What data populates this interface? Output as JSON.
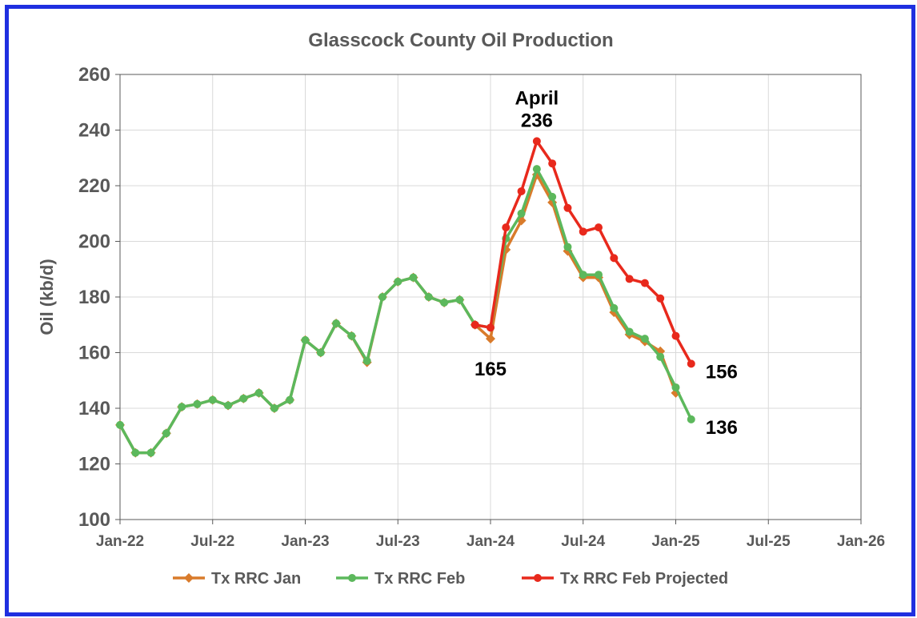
{
  "colors": {
    "border": "#1f2fe0",
    "jan": "#d97b2b",
    "feb": "#5cb85c",
    "proj": "#e8291c",
    "grid": "#d9d9d9",
    "text": "#595959"
  },
  "chart_data": {
    "type": "line",
    "title": "Glasscock County Oil Production",
    "xlabel": "",
    "ylabel": "Oil (kb/d)",
    "ylim": [
      100,
      260
    ],
    "yticks": [
      100,
      120,
      140,
      160,
      180,
      200,
      220,
      240,
      260
    ],
    "xlim": [
      "2022-01",
      "2026-01"
    ],
    "xticks": [
      {
        "date": "2022-01",
        "label": "Jan-22"
      },
      {
        "date": "2022-07",
        "label": "Jul-22"
      },
      {
        "date": "2023-01",
        "label": "Jan-23"
      },
      {
        "date": "2023-07",
        "label": "Jul-23"
      },
      {
        "date": "2024-01",
        "label": "Jan-24"
      },
      {
        "date": "2024-07",
        "label": "Jul-24"
      },
      {
        "date": "2025-01",
        "label": "Jan-25"
      },
      {
        "date": "2025-07",
        "label": "Jul-25"
      },
      {
        "date": "2026-01",
        "label": "Jan-26"
      }
    ],
    "grid": true,
    "legend_position": "bottom",
    "series": [
      {
        "name": "Tx RRC Jan",
        "color": "#d97b2b",
        "marker": "diamond",
        "x": [
          "2022-01",
          "2022-02",
          "2022-03",
          "2022-04",
          "2022-05",
          "2022-06",
          "2022-07",
          "2022-08",
          "2022-09",
          "2022-10",
          "2022-11",
          "2022-12",
          "2023-01",
          "2023-02",
          "2023-03",
          "2023-04",
          "2023-05",
          "2023-06",
          "2023-07",
          "2023-08",
          "2023-09",
          "2023-10",
          "2023-11",
          "2023-12",
          "2024-01",
          "2024-02",
          "2024-03",
          "2024-04",
          "2024-05",
          "2024-06",
          "2024-07",
          "2024-08",
          "2024-09",
          "2024-10",
          "2024-11",
          "2024-12",
          "2025-01"
        ],
        "values": [
          134,
          124,
          124,
          131,
          140.5,
          141.5,
          143,
          141,
          143.5,
          145.5,
          140,
          143,
          164.5,
          160,
          170.5,
          166,
          156.5,
          180,
          185.5,
          187,
          180,
          178,
          179,
          170,
          165,
          197,
          207.5,
          224,
          214,
          196.5,
          187,
          187,
          174.5,
          166.5,
          164,
          160.5,
          145.5
        ]
      },
      {
        "name": "Tx RRC Feb",
        "color": "#5cb85c",
        "marker": "circle",
        "x": [
          "2022-01",
          "2022-02",
          "2022-03",
          "2022-04",
          "2022-05",
          "2022-06",
          "2022-07",
          "2022-08",
          "2022-09",
          "2022-10",
          "2022-11",
          "2022-12",
          "2023-01",
          "2023-02",
          "2023-03",
          "2023-04",
          "2023-05",
          "2023-06",
          "2023-07",
          "2023-08",
          "2023-09",
          "2023-10",
          "2023-11",
          "2023-12",
          "2024-01",
          "2024-02",
          "2024-03",
          "2024-04",
          "2024-05",
          "2024-06",
          "2024-07",
          "2024-08",
          "2024-09",
          "2024-10",
          "2024-11",
          "2024-12",
          "2025-01",
          "2025-02"
        ],
        "values": [
          134,
          124,
          124,
          131,
          140.5,
          141.5,
          143,
          141,
          143.5,
          145.5,
          140,
          143,
          164.5,
          160,
          170.5,
          166,
          157,
          180,
          185.5,
          187,
          180,
          178,
          179,
          170,
          169,
          201,
          210,
          226,
          216,
          198,
          188,
          188,
          176,
          167.5,
          165,
          158.5,
          147.5,
          136
        ]
      },
      {
        "name": "Tx RRC Feb Projected",
        "color": "#e8291c",
        "marker": "circle",
        "x": [
          "2023-12",
          "2024-01",
          "2024-02",
          "2024-03",
          "2024-04",
          "2024-05",
          "2024-06",
          "2024-07",
          "2024-08",
          "2024-09",
          "2024-10",
          "2024-11",
          "2024-12",
          "2025-01",
          "2025-02"
        ],
        "values": [
          170,
          169,
          205,
          218,
          236,
          228,
          212,
          203.5,
          205,
          194,
          186.5,
          185,
          179.5,
          166,
          156
        ]
      }
    ],
    "annotations": [
      {
        "lines": [
          "April",
          "236"
        ],
        "x": "2024-04",
        "y": 236
      },
      {
        "text": "165",
        "x": "2024-01",
        "y": 165
      },
      {
        "text": "156",
        "x": "2025-02",
        "y": 156
      },
      {
        "text": "136",
        "x": "2025-02",
        "y": 136
      }
    ]
  }
}
